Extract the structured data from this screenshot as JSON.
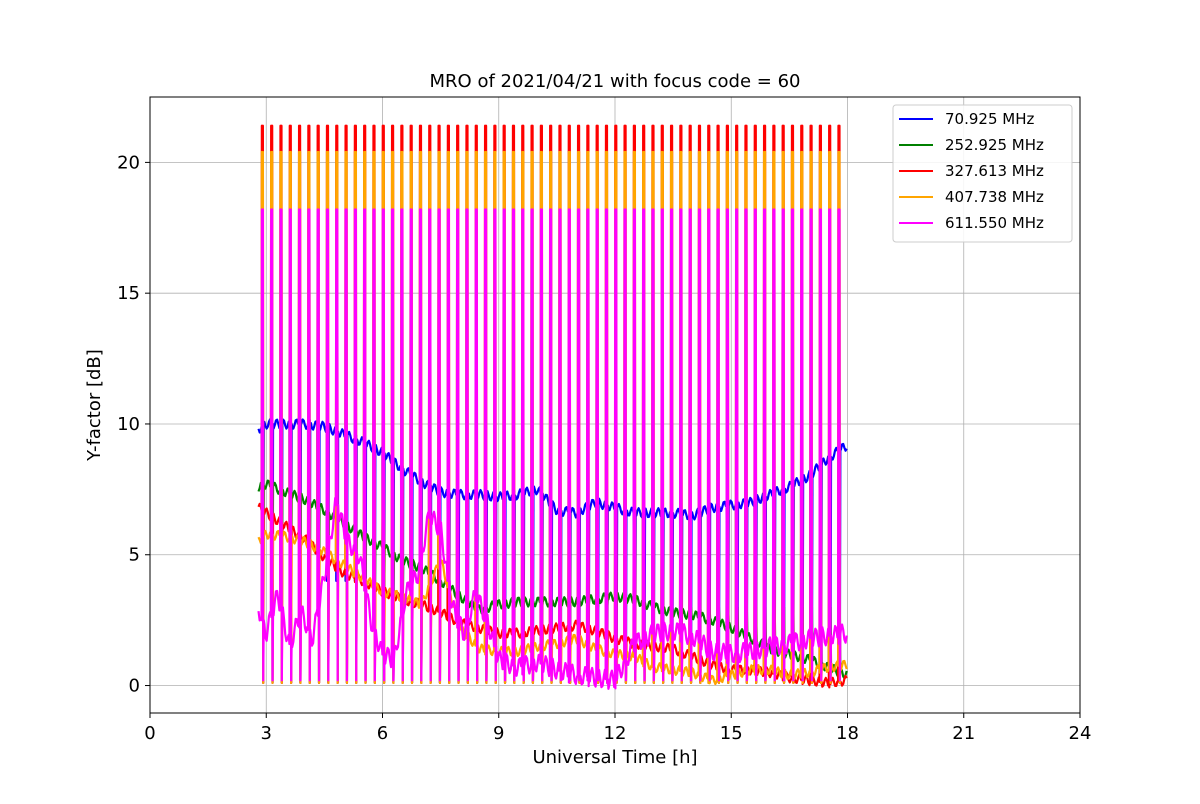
{
  "chart_data": {
    "type": "line",
    "title": "MRO of 2021/04/21 with focus code = 60",
    "xlabel": "Universal Time [h]",
    "ylabel": "Y-factor [dB]",
    "xlim": [
      0,
      24
    ],
    "ylim": [
      -1.05,
      22.5
    ],
    "xticks": [
      0,
      3,
      6,
      9,
      12,
      15,
      18,
      21,
      24
    ],
    "yticks": [
      0,
      5,
      10,
      15,
      20
    ],
    "grid": true,
    "legend_position": "upper right",
    "data_start_hour": 2.8,
    "data_end_hour": 18.0,
    "pulse_period_hours": 0.24,
    "pulse_first_hour": 2.9,
    "pulse_last_hour": 17.8,
    "series": [
      {
        "name": " 70.925 MHz",
        "color": "#0000ff",
        "pulse_peak": 4.0,
        "pulse_trough": 0.1,
        "x": [
          2.8,
          3.0,
          3.5,
          4.0,
          4.5,
          5.0,
          5.5,
          6.0,
          6.5,
          7.0,
          7.5,
          8.0,
          8.5,
          9.0,
          9.5,
          10.0,
          10.5,
          11.0,
          11.5,
          12.0,
          12.5,
          13.0,
          13.5,
          14.0,
          14.5,
          15.0,
          15.5,
          16.0,
          16.5,
          17.0,
          17.5,
          18.0
        ],
        "y": [
          9.8,
          10.0,
          10.0,
          10.0,
          9.9,
          9.6,
          9.3,
          8.9,
          8.3,
          7.8,
          7.4,
          7.3,
          7.3,
          7.2,
          7.3,
          7.5,
          6.7,
          6.6,
          7.0,
          6.8,
          6.6,
          6.6,
          6.6,
          6.5,
          6.8,
          6.9,
          7.0,
          7.3,
          7.6,
          8.0,
          8.7,
          9.2
        ]
      },
      {
        "name": " 252.925 MHz",
        "color": "#008000",
        "pulse_peak": 7.5,
        "pulse_trough": 3.0,
        "x": [
          2.8,
          3.0,
          3.5,
          4.0,
          4.5,
          5.0,
          5.5,
          6.0,
          6.5,
          7.0,
          7.5,
          8.0,
          8.5,
          9.0,
          9.5,
          10.0,
          10.5,
          11.0,
          11.5,
          12.0,
          12.5,
          13.0,
          13.5,
          14.0,
          14.5,
          15.0,
          15.5,
          16.0,
          16.5,
          17.0,
          17.5,
          18.0
        ],
        "y": [
          7.6,
          7.7,
          7.4,
          7.1,
          6.7,
          6.2,
          5.7,
          5.3,
          4.8,
          4.5,
          4.0,
          3.4,
          2.9,
          3.1,
          3.2,
          3.2,
          3.2,
          3.2,
          3.3,
          3.4,
          3.3,
          3.0,
          2.8,
          2.7,
          2.5,
          2.2,
          1.8,
          1.4,
          1.2,
          1.0,
          0.7,
          0.4
        ]
      },
      {
        "name": " 327.613 MHz",
        "color": "#ff0000",
        "pulse_peak": 21.4,
        "pulse_trough": 0.1,
        "x": [
          2.8,
          3.0,
          3.5,
          4.0,
          4.5,
          5.0,
          5.5,
          6.0,
          6.5,
          7.0,
          7.5,
          8.0,
          8.5,
          9.0,
          9.5,
          10.0,
          10.5,
          11.0,
          11.5,
          12.0,
          12.5,
          13.0,
          13.5,
          14.0,
          14.5,
          15.0,
          15.5,
          16.0,
          16.5,
          17.0,
          17.5,
          18.0
        ],
        "y": [
          6.8,
          6.6,
          6.1,
          5.6,
          4.9,
          4.3,
          4.0,
          3.6,
          3.3,
          3.1,
          2.8,
          2.4,
          2.2,
          2.0,
          2.0,
          2.1,
          2.2,
          2.3,
          2.1,
          1.8,
          1.6,
          1.5,
          1.4,
          1.1,
          0.8,
          0.6,
          0.6,
          0.5,
          0.3,
          0.2,
          0.1,
          0.2
        ]
      },
      {
        "name": " 407.738 MHz",
        "color": "#ffa500",
        "pulse_peak": 20.4,
        "pulse_trough": 0.1,
        "x": [
          2.8,
          3.0,
          3.5,
          4.0,
          4.5,
          5.0,
          5.5,
          6.0,
          6.5,
          7.0,
          7.5,
          8.0,
          8.5,
          9.0,
          9.5,
          10.0,
          10.5,
          11.0,
          11.5,
          12.0,
          12.5,
          13.0,
          13.5,
          14.0,
          14.5,
          15.0,
          15.5,
          16.0,
          16.5,
          17.0,
          17.5,
          18.0
        ],
        "y": [
          5.5,
          5.8,
          5.7,
          5.5,
          5.1,
          4.6,
          4.1,
          3.6,
          3.4,
          3.1,
          4.8,
          2.2,
          1.4,
          1.3,
          1.3,
          1.5,
          1.6,
          1.8,
          1.4,
          1.2,
          1.1,
          0.7,
          0.6,
          0.5,
          0.2,
          0.4,
          0.6,
          0.6,
          0.4,
          0.5,
          0.7,
          0.8
        ]
      },
      {
        "name": " 611.550 MHz",
        "color": "#ff00ff",
        "pulse_peak": 18.2,
        "pulse_trough": 0.2,
        "x": [
          2.8,
          3.0,
          3.3,
          3.6,
          3.9,
          4.2,
          4.5,
          4.8,
          5.1,
          5.4,
          5.7,
          6.0,
          6.3,
          6.6,
          6.9,
          7.2,
          7.5,
          7.8,
          8.1,
          8.4,
          8.7,
          9.0,
          9.5,
          10.0,
          10.5,
          11.0,
          11.5,
          12.0,
          12.5,
          13.0,
          13.5,
          14.0,
          14.5,
          15.0,
          15.5,
          16.0,
          16.5,
          17.0,
          17.5,
          18.0
        ],
        "y": [
          3.0,
          2.0,
          3.5,
          1.5,
          2.8,
          1.8,
          4.2,
          7.0,
          5.5,
          5.0,
          2.5,
          1.2,
          1.0,
          3.5,
          4.2,
          6.5,
          6.0,
          3.0,
          2.0,
          3.5,
          2.5,
          1.0,
          0.7,
          0.9,
          0.6,
          0.4,
          0.3,
          0.2,
          1.6,
          2.0,
          2.1,
          1.9,
          1.3,
          1.2,
          1.3,
          1.5,
          1.6,
          1.8,
          1.9,
          2.0
        ]
      }
    ]
  }
}
